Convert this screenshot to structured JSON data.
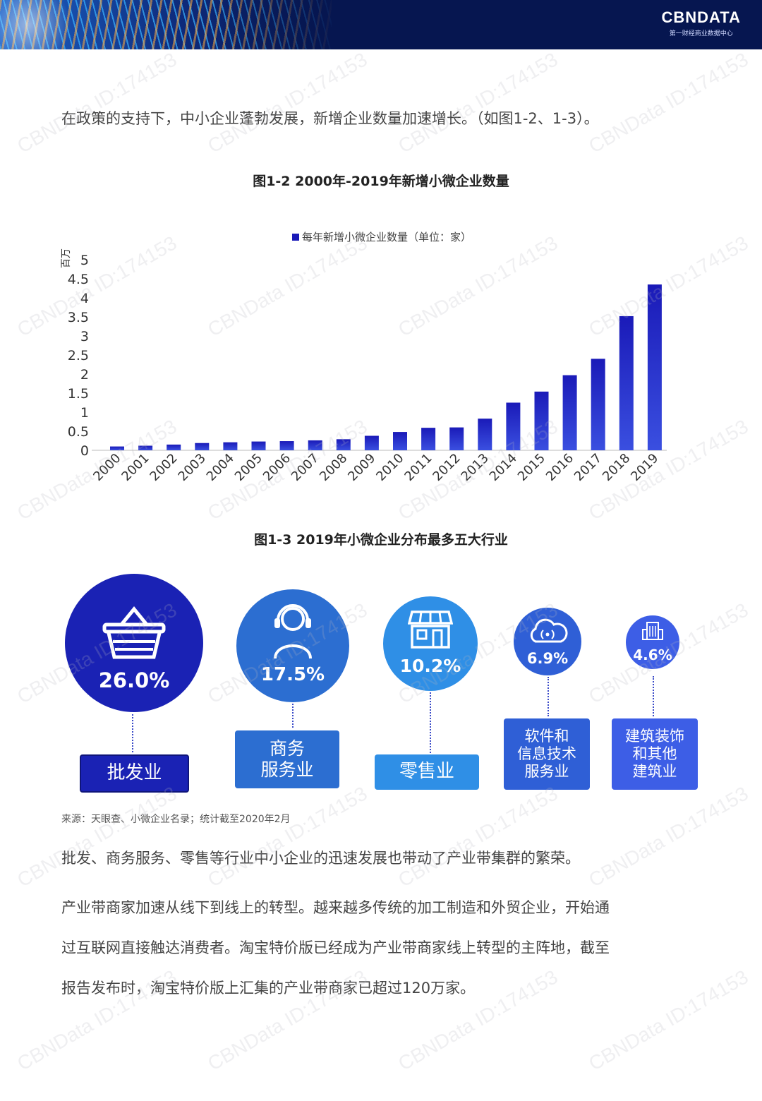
{
  "header": {
    "logo_name": "CBNDATA",
    "logo_sub": "第一财经商业数据中心"
  },
  "intro_text": "在政策的支持下，中小企业蓬勃发展，新增企业数量加速增长。（如图1-2、1-3）。",
  "figure2": {
    "title": "图1-2 2000年-2019年新增小微企业数量"
  },
  "chart_data": {
    "type": "bar",
    "title": "图1-2 2000年-2019年新增小微企业数量",
    "ylabel": "百万",
    "xlabel": "",
    "ylim": [
      0,
      5
    ],
    "yticks": [
      "0",
      "0.5",
      "1",
      "1.5",
      "2",
      "2.5",
      "3",
      "3.5",
      "4",
      "4.5",
      "5"
    ],
    "legend": "top-center",
    "categories": [
      "2000",
      "2001",
      "2002",
      "2003",
      "2004",
      "2005",
      "2006",
      "2007",
      "2008",
      "2009",
      "2010",
      "2011",
      "2012",
      "2013",
      "2014",
      "2015",
      "2016",
      "2017",
      "2018",
      "2019"
    ],
    "series": [
      {
        "name": "每年新增小微企业数量（单位：家）",
        "values": [
          0.1,
          0.12,
          0.15,
          0.19,
          0.21,
          0.23,
          0.24,
          0.26,
          0.29,
          0.38,
          0.48,
          0.59,
          0.6,
          0.83,
          1.25,
          1.54,
          1.97,
          2.4,
          3.52,
          4.35
        ]
      }
    ],
    "colors": {
      "bar_top": "#1a1ab8",
      "bar_bottom": "#3a4fe0"
    }
  },
  "figure3": {
    "title": "图1-3 2019年小微企业分布最多五大行业",
    "industries": [
      {
        "pct": "26.0%",
        "label": "批发业",
        "icon": "basket-icon",
        "color": "#1a22b4"
      },
      {
        "pct": "17.5%",
        "label": "商务服务业",
        "label_lines": [
          "商务",
          "服务业"
        ],
        "icon": "headset-person-icon",
        "color": "#2c6ed1"
      },
      {
        "pct": "10.2%",
        "label": "零售业",
        "icon": "storefront-icon",
        "color": "#2f8fe6"
      },
      {
        "pct": "6.9%",
        "label": "软件和信息技术服务业",
        "label_lines": [
          "软件和",
          "信息技术",
          "服务业"
        ],
        "icon": "cloud-signal-icon",
        "color": "#2f5fd6"
      },
      {
        "pct": "4.6%",
        "label": "建筑装饰和其他建筑业",
        "label_lines": [
          "建筑装饰",
          "和其他",
          "建筑业"
        ],
        "icon": "building-icon",
        "color": "#3d5ee6"
      }
    ]
  },
  "source_text": "来源：天眼查、小微企业名录；统计截至2020年2月",
  "paragraphs": [
    "批发、商务服务、零售等行业中小企业的迅速发展也带动了产业带集群的繁荣。",
    "产业带商家加速从线下到线上的转型。越来越多传统的加工制造和外贸企业，开始通",
    "过互联网直接触达消费者。淘宝特价版已经成为产业带商家线上转型的主阵地，截至",
    "报告发布时，淘宝特价版上汇集的产业带商家已超过120万家。"
  ],
  "watermark": "CBNData ID:174153"
}
